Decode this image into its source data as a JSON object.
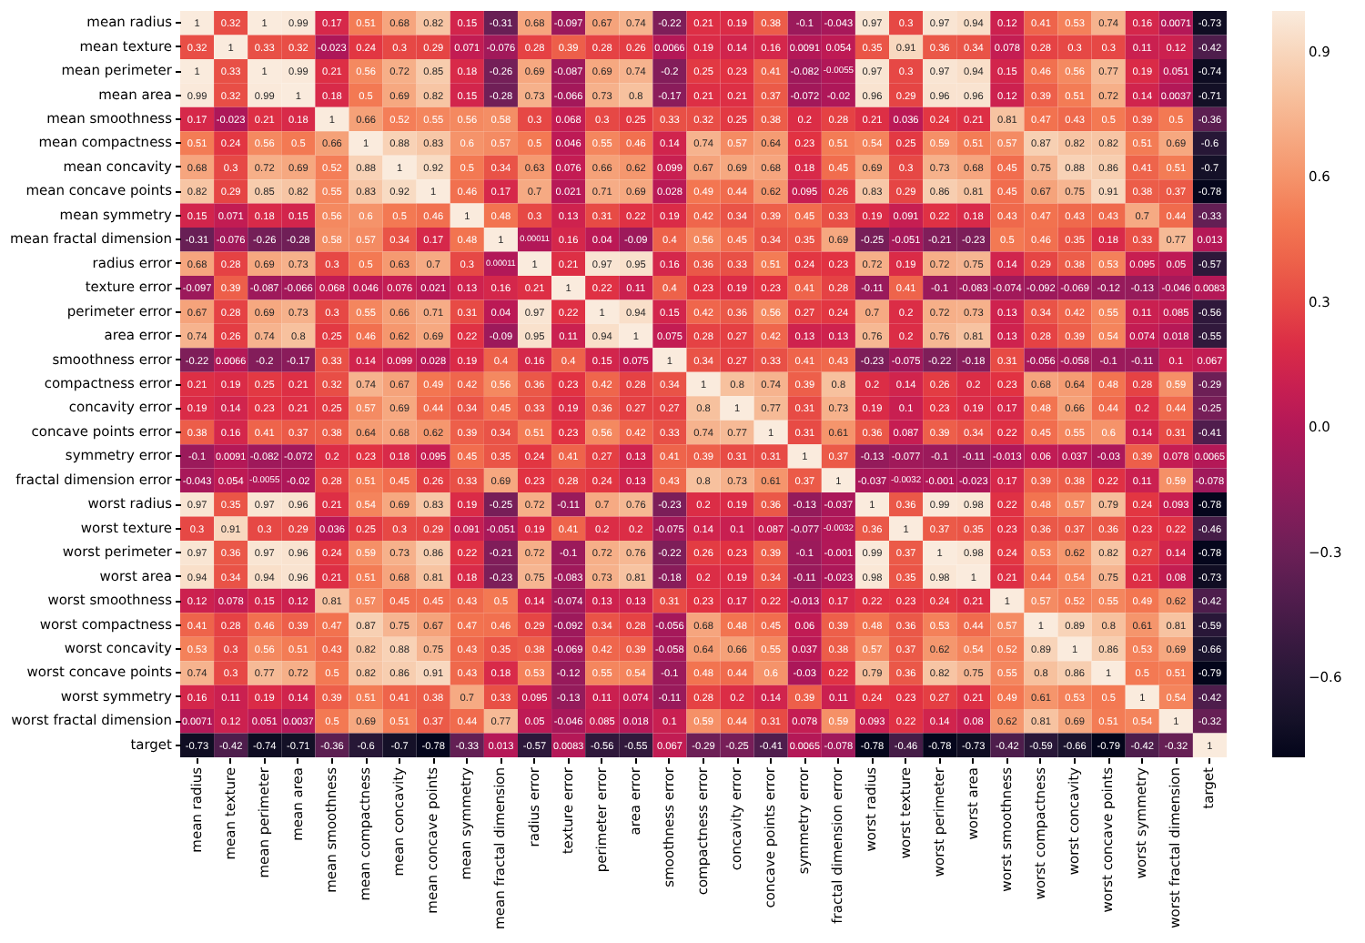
{
  "chart_data": {
    "type": "heatmap",
    "categories": [
      "mean radius",
      "mean texture",
      "mean perimeter",
      "mean area",
      "mean smoothness",
      "mean compactness",
      "mean concavity",
      "mean concave points",
      "mean symmetry",
      "mean fractal dimension",
      "radius error",
      "texture error",
      "perimeter error",
      "area error",
      "smoothness error",
      "compactness error",
      "concavity error",
      "concave points error",
      "symmetry error",
      "fractal dimension error",
      "worst radius",
      "worst texture",
      "worst perimeter",
      "worst area",
      "worst smoothness",
      "worst compactness",
      "worst concavity",
      "worst concave points",
      "worst symmetry",
      "worst fractal dimension",
      "target"
    ],
    "y_categories": [
      "mean radius",
      "mean texture",
      "mean perimeter",
      "mean area",
      "mean smoothness",
      "mean compactness",
      "mean concavity",
      "mean concave points",
      "mean symmetry",
      "mean fractal dimension",
      "radius error",
      "texture error",
      "perimeter error",
      "area error",
      "smoothness error",
      "compactness error",
      "concavity error",
      "concave points error",
      "symmetry error",
      "fractal dimension error",
      "worst radius",
      "worst texture",
      "worst perimeter",
      "worst area",
      "worst smoothness",
      "worst compactness",
      "worst concavity",
      "worst concave points",
      "worst symmetry",
      "worst fractal dimension",
      "target"
    ],
    "cells": [
      [
        1,
        0.32,
        1,
        0.99,
        0.17,
        0.51,
        0.68,
        0.82,
        0.15,
        -0.31,
        0.68,
        -0.097,
        0.67,
        0.74,
        -0.22,
        0.21,
        0.19,
        0.38,
        -0.1,
        -0.043,
        0.97,
        0.3,
        0.97,
        0.94,
        0.12,
        0.41,
        0.53,
        0.74,
        0.16,
        0.0071,
        -0.73
      ],
      [
        0.32,
        1,
        0.33,
        0.32,
        -0.023,
        0.24,
        0.3,
        0.29,
        0.071,
        -0.076,
        0.28,
        0.39,
        0.28,
        0.26,
        0.0066,
        0.19,
        0.14,
        0.16,
        0.0091,
        0.054,
        0.35,
        0.91,
        0.36,
        0.34,
        0.078,
        0.28,
        0.3,
        0.3,
        0.11,
        0.12,
        -0.42
      ],
      [
        1,
        0.33,
        1,
        0.99,
        0.21,
        0.56,
        0.72,
        0.85,
        0.18,
        -0.26,
        0.69,
        -0.087,
        0.69,
        0.74,
        -0.2,
        0.25,
        0.23,
        0.41,
        -0.082,
        -0.0055,
        0.97,
        0.3,
        0.97,
        0.94,
        0.15,
        0.46,
        0.56,
        0.77,
        0.19,
        0.051,
        -0.74
      ],
      [
        0.99,
        0.32,
        0.99,
        1,
        0.18,
        0.5,
        0.69,
        0.82,
        0.15,
        -0.28,
        0.73,
        -0.066,
        0.73,
        0.8,
        -0.17,
        0.21,
        0.21,
        0.37,
        -0.072,
        -0.02,
        0.96,
        0.29,
        0.96,
        0.96,
        0.12,
        0.39,
        0.51,
        0.72,
        0.14,
        0.0037,
        -0.71
      ],
      [
        0.17,
        -0.023,
        0.21,
        0.18,
        1,
        0.66,
        0.52,
        0.55,
        0.56,
        0.58,
        0.3,
        0.068,
        0.3,
        0.25,
        0.33,
        0.32,
        0.25,
        0.38,
        0.2,
        0.28,
        0.21,
        0.036,
        0.24,
        0.21,
        0.81,
        0.47,
        0.43,
        0.5,
        0.39,
        0.5,
        -0.36
      ],
      [
        0.51,
        0.24,
        0.56,
        0.5,
        0.66,
        1,
        0.88,
        0.83,
        0.6,
        0.57,
        0.5,
        0.046,
        0.55,
        0.46,
        0.14,
        0.74,
        0.57,
        0.64,
        0.23,
        0.51,
        0.54,
        0.25,
        0.59,
        0.51,
        0.57,
        0.87,
        0.82,
        0.82,
        0.51,
        0.69,
        -0.6
      ],
      [
        0.68,
        0.3,
        0.72,
        0.69,
        0.52,
        0.88,
        1,
        0.92,
        0.5,
        0.34,
        0.63,
        0.076,
        0.66,
        0.62,
        0.099,
        0.67,
        0.69,
        0.68,
        0.18,
        0.45,
        0.69,
        0.3,
        0.73,
        0.68,
        0.45,
        0.75,
        0.88,
        0.86,
        0.41,
        0.51,
        -0.7
      ],
      [
        0.82,
        0.29,
        0.85,
        0.82,
        0.55,
        0.83,
        0.92,
        1,
        0.46,
        0.17,
        0.7,
        0.021,
        0.71,
        0.69,
        0.028,
        0.49,
        0.44,
        0.62,
        0.095,
        0.26,
        0.83,
        0.29,
        0.86,
        0.81,
        0.45,
        0.67,
        0.75,
        0.91,
        0.38,
        0.37,
        -0.78
      ],
      [
        0.15,
        0.071,
        0.18,
        0.15,
        0.56,
        0.6,
        0.5,
        0.46,
        1,
        0.48,
        0.3,
        0.13,
        0.31,
        0.22,
        0.19,
        0.42,
        0.34,
        0.39,
        0.45,
        0.33,
        0.19,
        0.091,
        0.22,
        0.18,
        0.43,
        0.47,
        0.43,
        0.43,
        0.7,
        0.44,
        -0.33
      ],
      [
        -0.31,
        -0.076,
        -0.26,
        -0.28,
        0.58,
        0.57,
        0.34,
        0.17,
        0.48,
        1,
        0.00011,
        0.16,
        0.04,
        -0.09,
        0.4,
        0.56,
        0.45,
        0.34,
        0.35,
        0.69,
        -0.25,
        -0.051,
        -0.21,
        -0.23,
        0.5,
        0.46,
        0.35,
        0.18,
        0.33,
        0.77,
        0.013
      ],
      [
        0.68,
        0.28,
        0.69,
        0.73,
        0.3,
        0.5,
        0.63,
        0.7,
        0.3,
        0.00011,
        1,
        0.21,
        0.97,
        0.95,
        0.16,
        0.36,
        0.33,
        0.51,
        0.24,
        0.23,
        0.72,
        0.19,
        0.72,
        0.75,
        0.14,
        0.29,
        0.38,
        0.53,
        0.095,
        0.05,
        -0.57
      ],
      [
        -0.097,
        0.39,
        -0.087,
        -0.066,
        0.068,
        0.046,
        0.076,
        0.021,
        0.13,
        0.16,
        0.21,
        1,
        0.22,
        0.11,
        0.4,
        0.23,
        0.19,
        0.23,
        0.41,
        0.28,
        -0.11,
        0.41,
        -0.1,
        -0.083,
        -0.074,
        -0.092,
        -0.069,
        -0.12,
        -0.13,
        -0.046,
        0.0083
      ],
      [
        0.67,
        0.28,
        0.69,
        0.73,
        0.3,
        0.55,
        0.66,
        0.71,
        0.31,
        0.04,
        0.97,
        0.22,
        1,
        0.94,
        0.15,
        0.42,
        0.36,
        0.56,
        0.27,
        0.24,
        0.7,
        0.2,
        0.72,
        0.73,
        0.13,
        0.34,
        0.42,
        0.55,
        0.11,
        0.085,
        -0.56
      ],
      [
        0.74,
        0.26,
        0.74,
        0.8,
        0.25,
        0.46,
        0.62,
        0.69,
        0.22,
        -0.09,
        0.95,
        0.11,
        0.94,
        1,
        0.075,
        0.28,
        0.27,
        0.42,
        0.13,
        0.13,
        0.76,
        0.2,
        0.76,
        0.81,
        0.13,
        0.28,
        0.39,
        0.54,
        0.074,
        0.018,
        -0.55
      ],
      [
        -0.22,
        0.0066,
        -0.2,
        -0.17,
        0.33,
        0.14,
        0.099,
        0.028,
        0.19,
        0.4,
        0.16,
        0.4,
        0.15,
        0.075,
        1,
        0.34,
        0.27,
        0.33,
        0.41,
        0.43,
        -0.23,
        -0.075,
        -0.22,
        -0.18,
        0.31,
        -0.056,
        -0.058,
        -0.1,
        -0.11,
        0.1,
        0.067
      ],
      [
        0.21,
        0.19,
        0.25,
        0.21,
        0.32,
        0.74,
        0.67,
        0.49,
        0.42,
        0.56,
        0.36,
        0.23,
        0.42,
        0.28,
        0.34,
        1,
        0.8,
        0.74,
        0.39,
        0.8,
        0.2,
        0.14,
        0.26,
        0.2,
        0.23,
        0.68,
        0.64,
        0.48,
        0.28,
        0.59,
        -0.29
      ],
      [
        0.19,
        0.14,
        0.23,
        0.21,
        0.25,
        0.57,
        0.69,
        0.44,
        0.34,
        0.45,
        0.33,
        0.19,
        0.36,
        0.27,
        0.27,
        0.8,
        1,
        0.77,
        0.31,
        0.73,
        0.19,
        0.1,
        0.23,
        0.19,
        0.17,
        0.48,
        0.66,
        0.44,
        0.2,
        0.44,
        -0.25
      ],
      [
        0.38,
        0.16,
        0.41,
        0.37,
        0.38,
        0.64,
        0.68,
        0.62,
        0.39,
        0.34,
        0.51,
        0.23,
        0.56,
        0.42,
        0.33,
        0.74,
        0.77,
        1,
        0.31,
        0.61,
        0.36,
        0.087,
        0.39,
        0.34,
        0.22,
        0.45,
        0.55,
        0.6,
        0.14,
        0.31,
        -0.41
      ],
      [
        -0.1,
        0.0091,
        -0.082,
        -0.072,
        0.2,
        0.23,
        0.18,
        0.095,
        0.45,
        0.35,
        0.24,
        0.41,
        0.27,
        0.13,
        0.41,
        0.39,
        0.31,
        0.31,
        1,
        0.37,
        -0.13,
        -0.077,
        -0.1,
        -0.11,
        -0.013,
        0.06,
        0.037,
        -0.03,
        0.39,
        0.078,
        0.0065
      ],
      [
        -0.043,
        0.054,
        -0.0055,
        -0.02,
        0.28,
        0.51,
        0.45,
        0.26,
        0.33,
        0.69,
        0.23,
        0.28,
        0.24,
        0.13,
        0.43,
        0.8,
        0.73,
        0.61,
        0.37,
        1,
        -0.037,
        -0.0032,
        -0.001,
        -0.023,
        0.17,
        0.39,
        0.38,
        0.22,
        0.11,
        0.59,
        -0.078
      ],
      [
        0.97,
        0.35,
        0.97,
        0.96,
        0.21,
        0.54,
        0.69,
        0.83,
        0.19,
        -0.25,
        0.72,
        -0.11,
        0.7,
        0.76,
        -0.23,
        0.2,
        0.19,
        0.36,
        -0.13,
        -0.037,
        1,
        0.36,
        0.99,
        0.98,
        0.22,
        0.48,
        0.57,
        0.79,
        0.24,
        0.093,
        -0.78
      ],
      [
        0.3,
        0.91,
        0.3,
        0.29,
        0.036,
        0.25,
        0.3,
        0.29,
        0.091,
        -0.051,
        0.19,
        0.41,
        0.2,
        0.2,
        -0.075,
        0.14,
        0.1,
        0.087,
        -0.077,
        -0.0032,
        0.36,
        1,
        0.37,
        0.35,
        0.23,
        0.36,
        0.37,
        0.36,
        0.23,
        0.22,
        -0.46
      ],
      [
        0.97,
        0.36,
        0.97,
        0.96,
        0.24,
        0.59,
        0.73,
        0.86,
        0.22,
        -0.21,
        0.72,
        -0.1,
        0.72,
        0.76,
        -0.22,
        0.26,
        0.23,
        0.39,
        -0.1,
        -0.001,
        0.99,
        0.37,
        1,
        0.98,
        0.24,
        0.53,
        0.62,
        0.82,
        0.27,
        0.14,
        -0.78
      ],
      [
        0.94,
        0.34,
        0.94,
        0.96,
        0.21,
        0.51,
        0.68,
        0.81,
        0.18,
        -0.23,
        0.75,
        -0.083,
        0.73,
        0.81,
        -0.18,
        0.2,
        0.19,
        0.34,
        -0.11,
        -0.023,
        0.98,
        0.35,
        0.98,
        1,
        0.21,
        0.44,
        0.54,
        0.75,
        0.21,
        0.08,
        -0.73
      ],
      [
        0.12,
        0.078,
        0.15,
        0.12,
        0.81,
        0.57,
        0.45,
        0.45,
        0.43,
        0.5,
        0.14,
        -0.074,
        0.13,
        0.13,
        0.31,
        0.23,
        0.17,
        0.22,
        -0.013,
        0.17,
        0.22,
        0.23,
        0.24,
        0.21,
        1,
        0.57,
        0.52,
        0.55,
        0.49,
        0.62,
        -0.42
      ],
      [
        0.41,
        0.28,
        0.46,
        0.39,
        0.47,
        0.87,
        0.75,
        0.67,
        0.47,
        0.46,
        0.29,
        -0.092,
        0.34,
        0.28,
        -0.056,
        0.68,
        0.48,
        0.45,
        0.06,
        0.39,
        0.48,
        0.36,
        0.53,
        0.44,
        0.57,
        1,
        0.89,
        0.8,
        0.61,
        0.81,
        -0.59
      ],
      [
        0.53,
        0.3,
        0.56,
        0.51,
        0.43,
        0.82,
        0.88,
        0.75,
        0.43,
        0.35,
        0.38,
        -0.069,
        0.42,
        0.39,
        -0.058,
        0.64,
        0.66,
        0.55,
        0.037,
        0.38,
        0.57,
        0.37,
        0.62,
        0.54,
        0.52,
        0.89,
        1,
        0.86,
        0.53,
        0.69,
        -0.66
      ],
      [
        0.74,
        0.3,
        0.77,
        0.72,
        0.5,
        0.82,
        0.86,
        0.91,
        0.43,
        0.18,
        0.53,
        -0.12,
        0.55,
        0.54,
        -0.1,
        0.48,
        0.44,
        0.6,
        -0.03,
        0.22,
        0.79,
        0.36,
        0.82,
        0.75,
        0.55,
        0.8,
        0.86,
        1,
        0.5,
        0.51,
        -0.79
      ],
      [
        0.16,
        0.11,
        0.19,
        0.14,
        0.39,
        0.51,
        0.41,
        0.38,
        0.7,
        0.33,
        0.095,
        -0.13,
        0.11,
        0.074,
        -0.11,
        0.28,
        0.2,
        0.14,
        0.39,
        0.11,
        0.24,
        0.23,
        0.27,
        0.21,
        0.49,
        0.61,
        0.53,
        0.5,
        1,
        0.54,
        -0.42
      ],
      [
        0.0071,
        0.12,
        0.051,
        0.0037,
        0.5,
        0.69,
        0.51,
        0.37,
        0.44,
        0.77,
        0.05,
        -0.046,
        0.085,
        0.018,
        0.1,
        0.59,
        0.44,
        0.31,
        0.078,
        0.59,
        0.093,
        0.22,
        0.14,
        0.08,
        0.62,
        0.81,
        0.69,
        0.51,
        0.54,
        1,
        -0.32
      ],
      [
        -0.73,
        -0.42,
        -0.74,
        -0.71,
        -0.36,
        -0.6,
        -0.7,
        -0.78,
        -0.33,
        0.013,
        -0.57,
        0.0083,
        -0.56,
        -0.55,
        0.067,
        -0.29,
        -0.25,
        -0.41,
        0.0065,
        -0.078,
        -0.78,
        -0.46,
        -0.78,
        -0.73,
        -0.42,
        -0.59,
        -0.66,
        -0.79,
        -0.42,
        -0.32,
        1
      ]
    ],
    "clim": [
      -0.79,
      1
    ],
    "cticks": [
      {
        "value": -0.6,
        "label": "−0.6"
      },
      {
        "value": -0.3,
        "label": "−0.3"
      },
      {
        "value": 0,
        "label": "0.0"
      },
      0.3,
      0.6,
      0.9
    ],
    "data_labels": true
  }
}
